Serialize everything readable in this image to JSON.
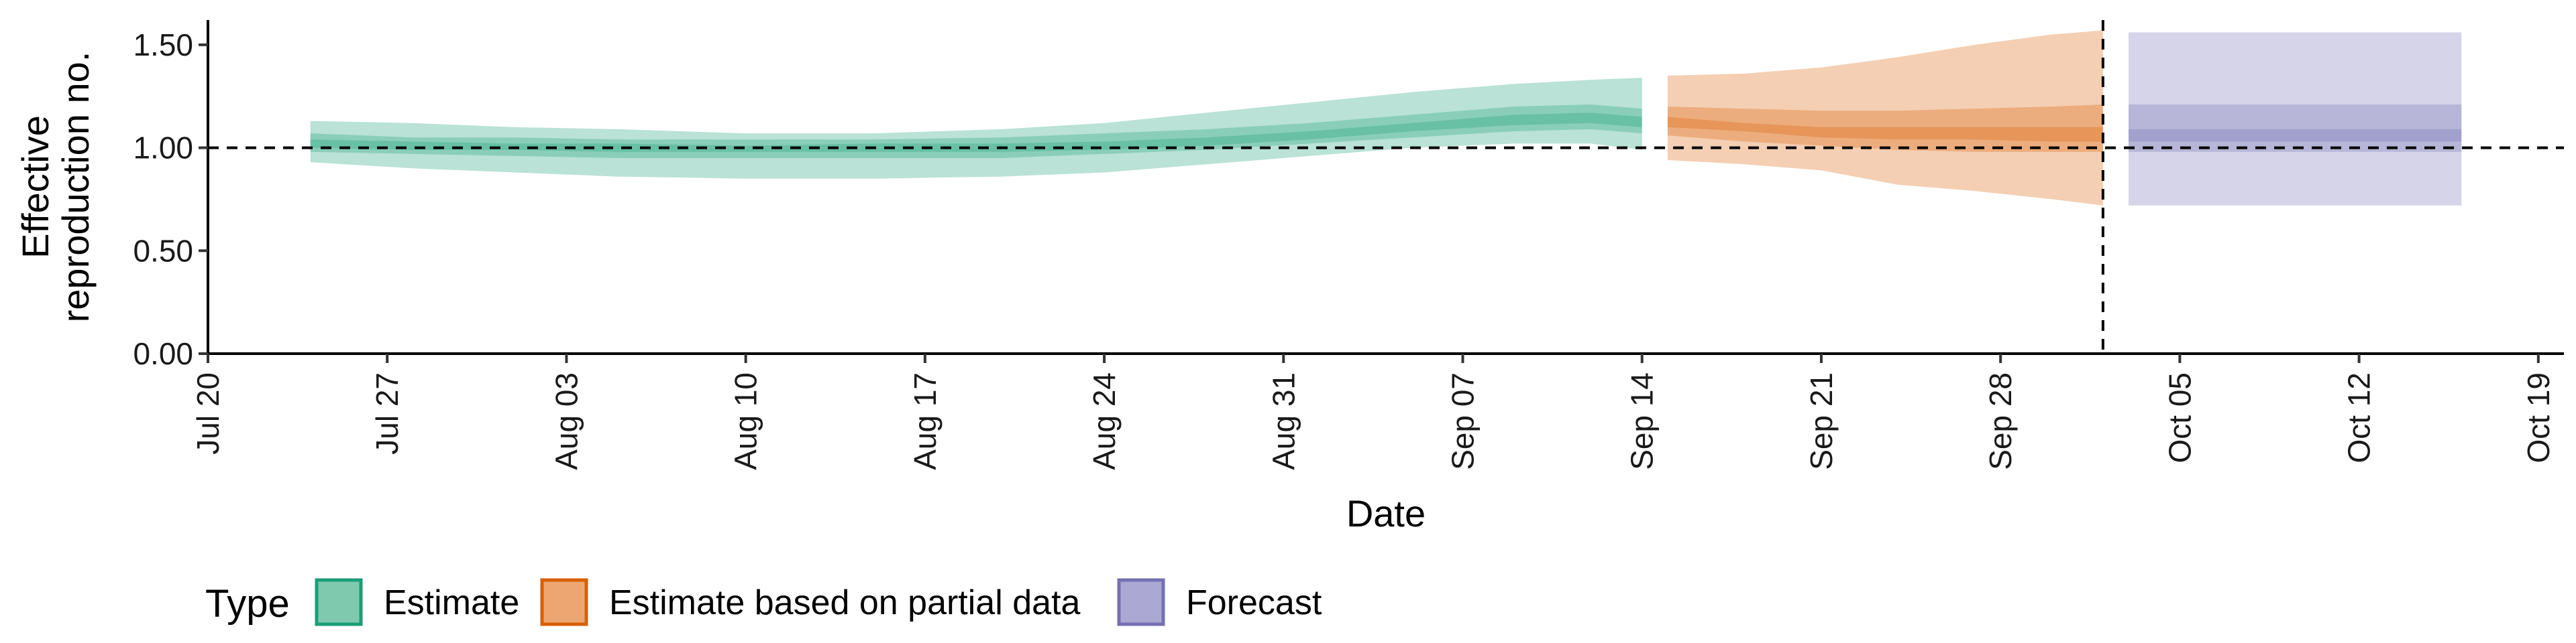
{
  "chart_data": {
    "type": "area",
    "title": "",
    "xlabel": "Date",
    "ylabel_lines": [
      "Effective",
      "reproduction no."
    ],
    "x_type": "date",
    "xlim": [
      "2020-07-20",
      "2020-10-20"
    ],
    "ylim": [
      0,
      1.62
    ],
    "x_ticks": [
      {
        "date": "2020-07-20",
        "label": "Jul 20"
      },
      {
        "date": "2020-07-27",
        "label": "Jul 27"
      },
      {
        "date": "2020-08-03",
        "label": "Aug 03"
      },
      {
        "date": "2020-08-10",
        "label": "Aug 10"
      },
      {
        "date": "2020-08-17",
        "label": "Aug 17"
      },
      {
        "date": "2020-08-24",
        "label": "Aug 24"
      },
      {
        "date": "2020-08-31",
        "label": "Aug 31"
      },
      {
        "date": "2020-09-07",
        "label": "Sep 07"
      },
      {
        "date": "2020-09-14",
        "label": "Sep 14"
      },
      {
        "date": "2020-09-21",
        "label": "Sep 21"
      },
      {
        "date": "2020-09-28",
        "label": "Sep 28"
      },
      {
        "date": "2020-10-05",
        "label": "Oct 05"
      },
      {
        "date": "2020-10-12",
        "label": "Oct 12"
      },
      {
        "date": "2020-10-19",
        "label": "Oct 19"
      }
    ],
    "y_ticks": [
      {
        "value": 0,
        "label": "0.00"
      },
      {
        "value": 0.5,
        "label": "0.50"
      },
      {
        "value": 1,
        "label": "1.00"
      },
      {
        "value": 1.5,
        "label": "1.50"
      }
    ],
    "reference_hline": 1.0,
    "reference_vline": "2020-10-02",
    "grid": false,
    "legend": {
      "title": "Type",
      "position": "bottom-left",
      "entries": [
        {
          "label": "Estimate",
          "fill": "#7FCAAE",
          "stroke": "#1B9E77"
        },
        {
          "label": "Estimate based on partial data",
          "fill": "#EDA572",
          "stroke": "#D95F02"
        },
        {
          "label": "Forecast",
          "fill": "#ABA8D3",
          "stroke": "#7570B3"
        }
      ]
    },
    "series": [
      {
        "name": "Estimate",
        "color": "#1B9E77",
        "points": [
          {
            "x": "2020-07-24",
            "lo90": 0.93,
            "lo50": 0.98,
            "lo20": 1.0,
            "hi20": 1.04,
            "hi50": 1.07,
            "hi90": 1.13
          },
          {
            "x": "2020-07-28",
            "lo90": 0.9,
            "lo50": 0.97,
            "lo20": 0.99,
            "hi20": 1.03,
            "hi50": 1.05,
            "hi90": 1.12
          },
          {
            "x": "2020-08-01",
            "lo90": 0.88,
            "lo50": 0.96,
            "lo20": 0.99,
            "hi20": 1.02,
            "hi50": 1.05,
            "hi90": 1.1
          },
          {
            "x": "2020-08-05",
            "lo90": 0.86,
            "lo50": 0.95,
            "lo20": 0.98,
            "hi20": 1.02,
            "hi50": 1.04,
            "hi90": 1.09
          },
          {
            "x": "2020-08-10",
            "lo90": 0.85,
            "lo50": 0.95,
            "lo20": 0.98,
            "hi20": 1.01,
            "hi50": 1.04,
            "hi90": 1.07
          },
          {
            "x": "2020-08-15",
            "lo90": 0.85,
            "lo50": 0.95,
            "lo20": 0.98,
            "hi20": 1.02,
            "hi50": 1.04,
            "hi90": 1.07
          },
          {
            "x": "2020-08-20",
            "lo90": 0.86,
            "lo50": 0.95,
            "lo20": 0.98,
            "hi20": 1.02,
            "hi50": 1.05,
            "hi90": 1.09
          },
          {
            "x": "2020-08-24",
            "lo90": 0.88,
            "lo50": 0.97,
            "lo20": 0.99,
            "hi20": 1.03,
            "hi50": 1.07,
            "hi90": 1.12
          },
          {
            "x": "2020-08-28",
            "lo90": 0.92,
            "lo50": 0.99,
            "lo20": 1.01,
            "hi20": 1.05,
            "hi50": 1.09,
            "hi90": 1.17
          },
          {
            "x": "2020-09-01",
            "lo90": 0.96,
            "lo50": 1.02,
            "lo20": 1.04,
            "hi20": 1.08,
            "hi50": 1.12,
            "hi90": 1.22
          },
          {
            "x": "2020-09-05",
            "lo90": 1.0,
            "lo50": 1.05,
            "lo20": 1.08,
            "hi20": 1.12,
            "hi50": 1.16,
            "hi90": 1.27
          },
          {
            "x": "2020-09-09",
            "lo90": 1.02,
            "lo50": 1.08,
            "lo20": 1.11,
            "hi20": 1.16,
            "hi50": 1.2,
            "hi90": 1.31
          },
          {
            "x": "2020-09-12",
            "lo90": 1.02,
            "lo50": 1.09,
            "lo20": 1.12,
            "hi20": 1.17,
            "hi50": 1.21,
            "hi90": 1.33
          },
          {
            "x": "2020-09-14",
            "lo90": 0.99,
            "lo50": 1.07,
            "lo20": 1.1,
            "hi20": 1.15,
            "hi50": 1.19,
            "hi90": 1.34
          }
        ]
      },
      {
        "name": "Estimate based on partial data",
        "color": "#D95F02",
        "points": [
          {
            "x": "2020-09-15",
            "lo90": 0.94,
            "lo50": 1.06,
            "lo20": 1.1,
            "hi20": 1.15,
            "hi50": 1.2,
            "hi90": 1.35
          },
          {
            "x": "2020-09-18",
            "lo90": 0.92,
            "lo50": 1.03,
            "lo20": 1.08,
            "hi20": 1.12,
            "hi50": 1.19,
            "hi90": 1.36
          },
          {
            "x": "2020-09-21",
            "lo90": 0.89,
            "lo50": 1.01,
            "lo20": 1.05,
            "hi20": 1.1,
            "hi50": 1.18,
            "hi90": 1.39
          },
          {
            "x": "2020-09-24",
            "lo90": 0.82,
            "lo50": 0.99,
            "lo20": 1.04,
            "hi20": 1.1,
            "hi50": 1.18,
            "hi90": 1.44
          },
          {
            "x": "2020-09-27",
            "lo90": 0.79,
            "lo50": 0.98,
            "lo20": 1.04,
            "hi20": 1.1,
            "hi50": 1.19,
            "hi90": 1.5
          },
          {
            "x": "2020-09-30",
            "lo90": 0.75,
            "lo50": 0.98,
            "lo20": 1.03,
            "hi20": 1.1,
            "hi50": 1.2,
            "hi90": 1.55
          },
          {
            "x": "2020-10-02",
            "lo90": 0.72,
            "lo50": 0.98,
            "lo20": 1.03,
            "hi20": 1.1,
            "hi50": 1.21,
            "hi90": 1.57
          }
        ]
      },
      {
        "name": "Forecast",
        "color": "#7570B3",
        "points": [
          {
            "x": "2020-10-03",
            "lo90": 0.72,
            "lo50": 0.98,
            "lo20": 1.03,
            "hi20": 1.09,
            "hi50": 1.21,
            "hi90": 1.56
          },
          {
            "x": "2020-10-16",
            "lo90": 0.72,
            "lo50": 0.98,
            "lo20": 1.03,
            "hi20": 1.09,
            "hi50": 1.21,
            "hi90": 1.56
          }
        ]
      }
    ]
  }
}
